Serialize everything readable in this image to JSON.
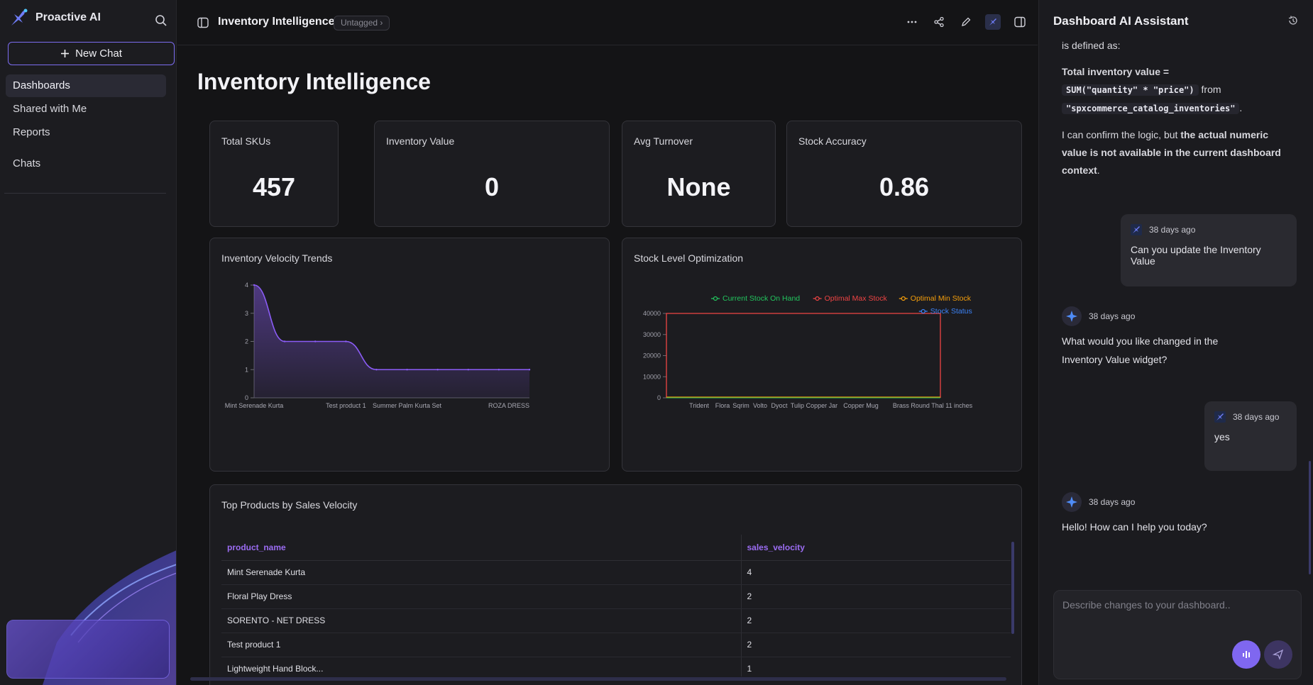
{
  "sidebar": {
    "brand": "Proactive AI",
    "new_chat_label": "New Chat",
    "nav": [
      {
        "label": "Dashboards",
        "active": true
      },
      {
        "label": "Shared with Me",
        "active": false
      },
      {
        "label": "Reports",
        "active": false
      }
    ],
    "chats_label": "Chats",
    "icons": {
      "logo": "proactive-logo-icon",
      "search": "search-icon",
      "plus": "plus-icon"
    }
  },
  "topbar": {
    "title": "Inventory Intelligence",
    "tag": "Untagged",
    "icons": [
      "more-icon",
      "share-icon",
      "edit-icon",
      "ai-assistant-icon",
      "panel-right-icon"
    ]
  },
  "page": {
    "title": "Inventory Intelligence"
  },
  "kpis": [
    {
      "label": "Total SKUs",
      "value": "457"
    },
    {
      "label": "Inventory Value",
      "value": "0"
    },
    {
      "label": "Avg Turnover",
      "value": "None"
    },
    {
      "label": "Stock Accuracy",
      "value": "0.86"
    }
  ],
  "chart_data": [
    {
      "type": "area",
      "title": "Inventory Velocity Trends",
      "categories": [
        "Mint Serenade Kurta",
        "",
        "",
        "Test product 1",
        "",
        "Summer Palm Kurta Set",
        "",
        "",
        "",
        "ROZA DRESS"
      ],
      "tick_labels": [
        "Mint Serenade Kurta",
        "Test product 1",
        "Summer Palm Kurta Set",
        "ROZA DRESS"
      ],
      "values": [
        4,
        2,
        2,
        2,
        1,
        1,
        1,
        1,
        1,
        1
      ],
      "ylim": [
        0,
        4
      ],
      "yticks": [
        0,
        1,
        2,
        3,
        4
      ],
      "color": "#8b5cf6"
    },
    {
      "type": "line",
      "title": "Stock Level Optimization",
      "categories": [
        "Trident",
        "Flora",
        "Sqrim",
        "Volto",
        "Dyoct",
        "Tulip Copper Jar",
        "Copper Mug",
        "Brass Round Thal 11 inches"
      ],
      "series": [
        {
          "name": "Current Stock On Hand",
          "color": "#22c55e"
        },
        {
          "name": "Optimal Max Stock",
          "color": "#ef4444"
        },
        {
          "name": "Optimal Min Stock",
          "color": "#f59e0b"
        },
        {
          "name": "Stock Status",
          "color": "#3b82f6"
        }
      ],
      "ylim": [
        0,
        40000
      ],
      "yticks": [
        0,
        10000,
        20000,
        30000,
        40000
      ],
      "legend": "top-right"
    }
  ],
  "table": {
    "title": "Top Products by Sales Velocity",
    "columns": [
      "product_name",
      "sales_velocity"
    ],
    "rows": [
      [
        "Mint Serenade Kurta",
        "4"
      ],
      [
        "Floral Play Dress",
        "2"
      ],
      [
        "SORENTO - NET DRESS",
        "2"
      ],
      [
        "Test product 1",
        "2"
      ],
      [
        "Lightweight Hand Block...",
        "1"
      ]
    ]
  },
  "assistant": {
    "title": "Dashboard AI Assistant",
    "intro_tail": "is defined as:",
    "formula_label": "Total inventory value =",
    "formula_code": "SUM(\"quantity\" * \"price\")",
    "formula_from": "from",
    "formula_table": "\"spxcommerce_catalog_inventories\"",
    "confirm_pre": "I can confirm the logic, but ",
    "confirm_bold": "the actual numeric value is not available in the current dashboard context",
    "confirm_post": ".",
    "messages": [
      {
        "role": "user",
        "time": "38 days ago",
        "text": "Can you update the Inventory Value"
      },
      {
        "role": "ai",
        "time": "38 days ago",
        "text": "What would you like changed in the Inventory Value widget?"
      },
      {
        "role": "user",
        "time": "38 days ago",
        "text": "yes"
      },
      {
        "role": "ai",
        "time": "38 days ago",
        "text": "Hello! How can I help you today?"
      }
    ],
    "input_placeholder": "Describe changes to your dashboard..",
    "icons": {
      "history": "history-icon",
      "voice": "voice-icon",
      "send": "send-icon",
      "ai": "sparkle-icon",
      "user": "user-icon"
    }
  }
}
